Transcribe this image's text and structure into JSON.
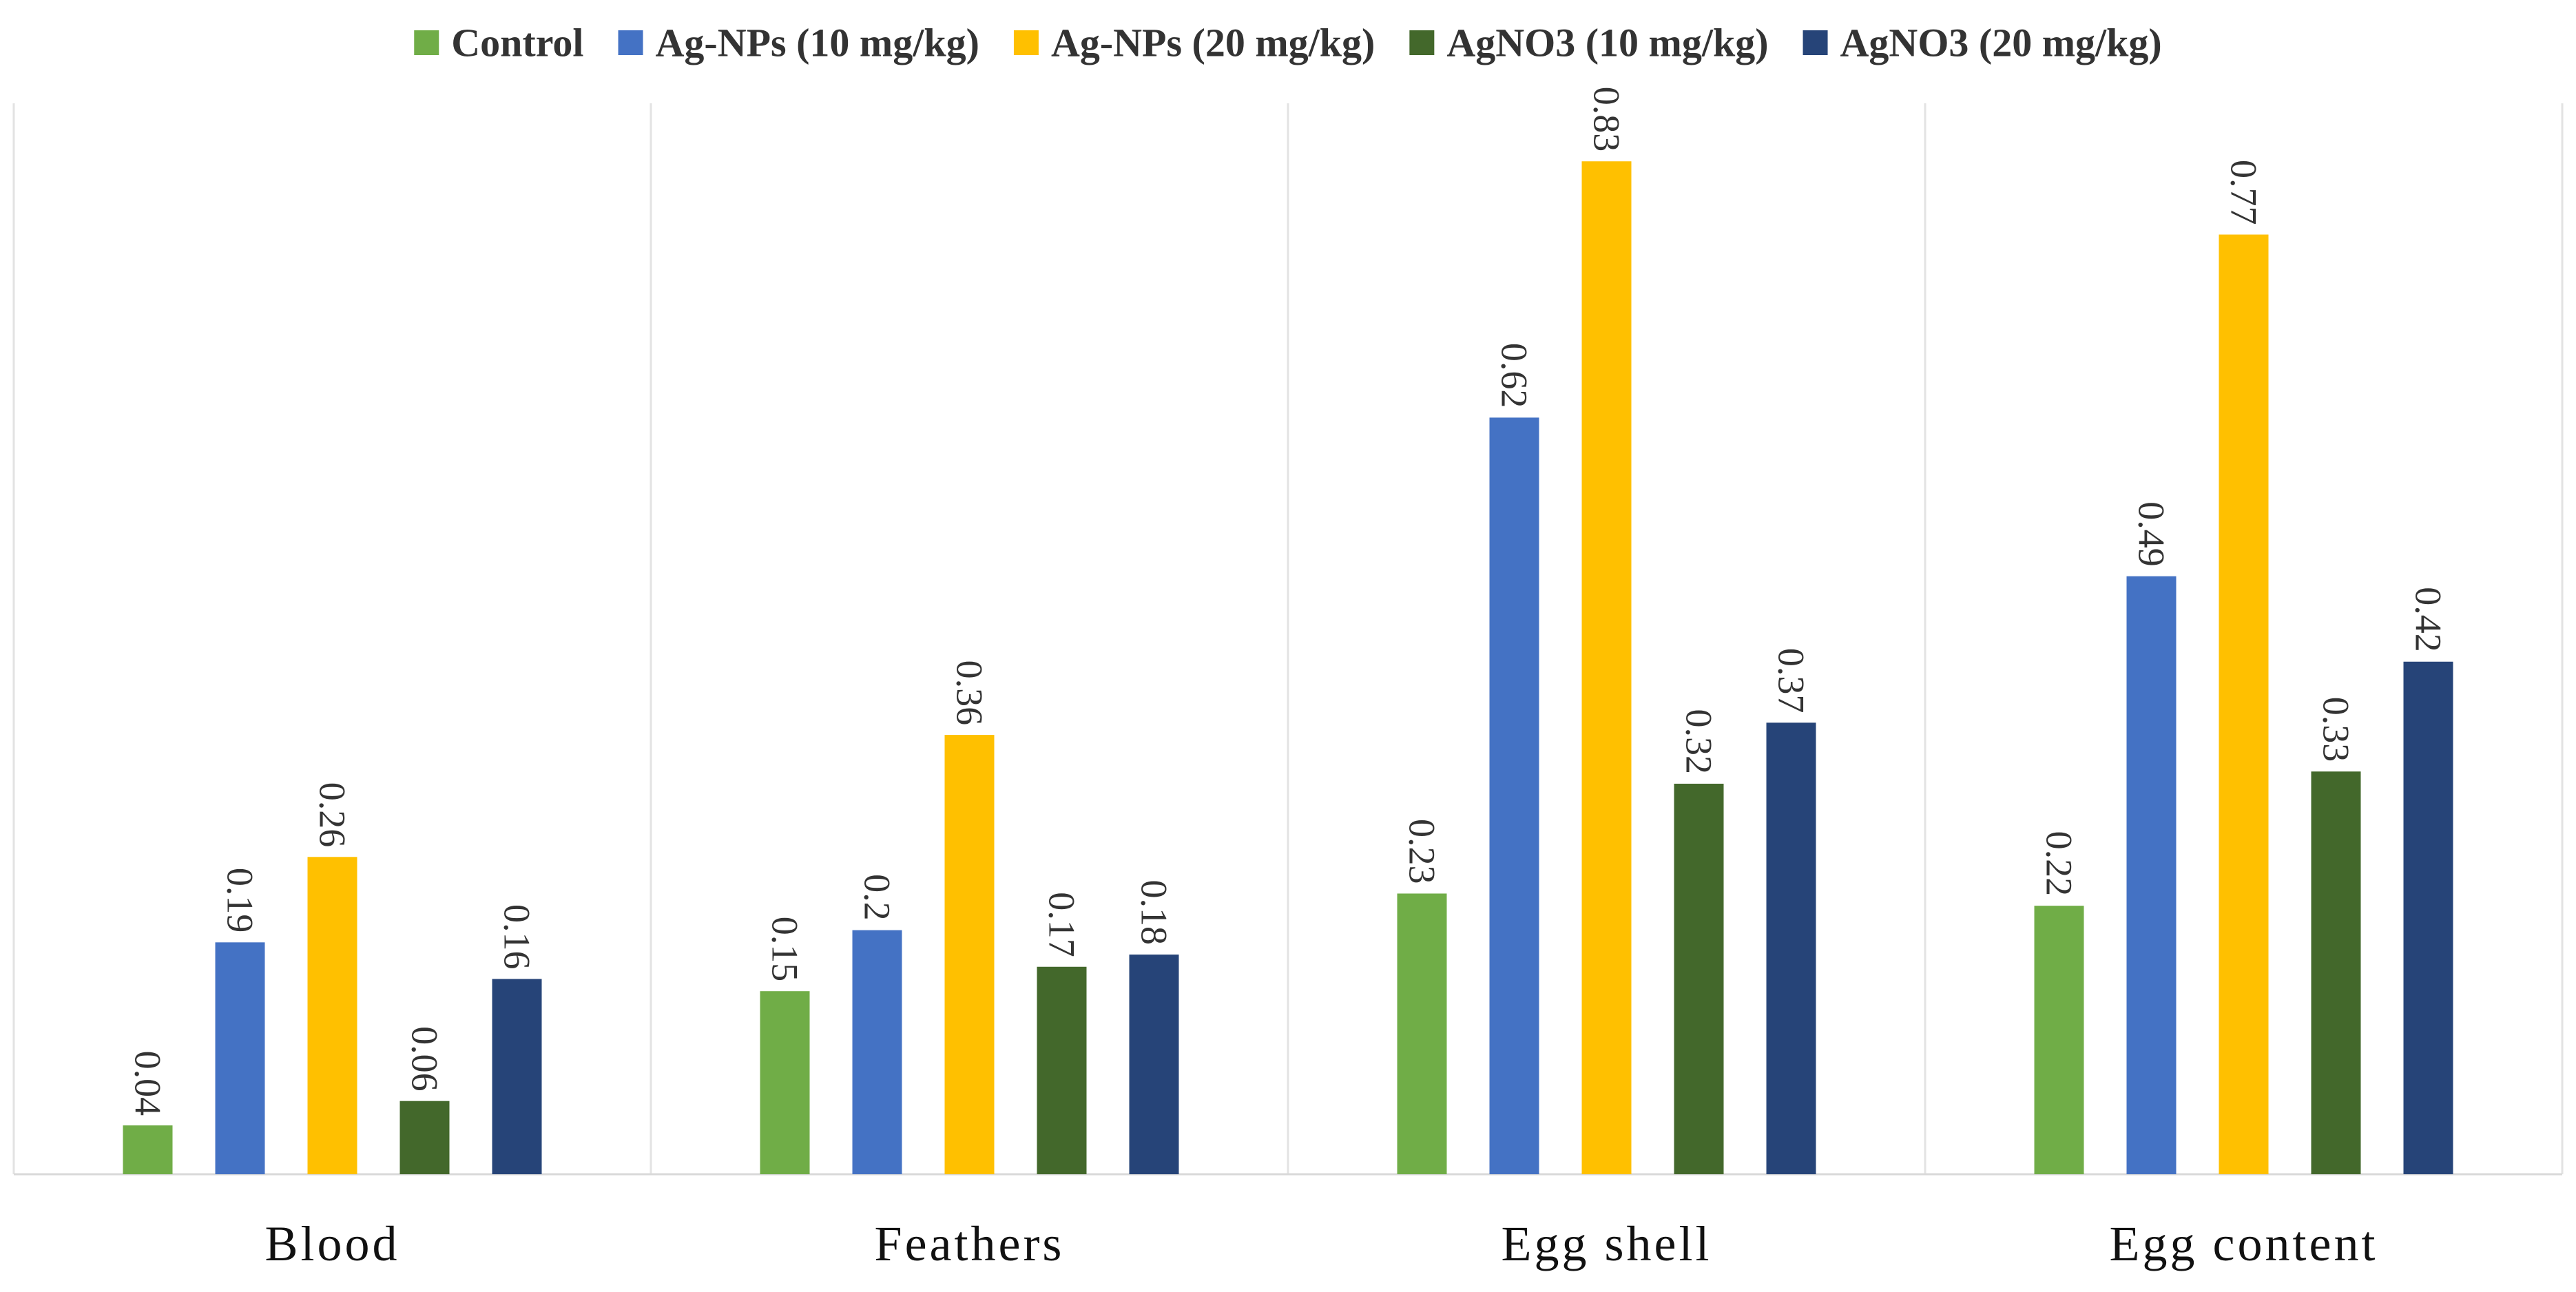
{
  "chart_data": {
    "type": "bar",
    "title": "",
    "xlabel": "",
    "ylabel": "",
    "ylim": [
      0,
      0.9
    ],
    "grid": false,
    "legend_position": "top",
    "categories": [
      "Blood",
      "Feathers",
      "Egg shell",
      "Egg content"
    ],
    "series": [
      {
        "name": "Control",
        "color": "#70ad47",
        "values": [
          0.04,
          0.15,
          0.23,
          0.22
        ],
        "labels": [
          "0.04",
          "0.15",
          "0.23",
          "0.22"
        ]
      },
      {
        "name": "Ag-NPs (10 mg/kg)",
        "color": "#4472c4",
        "values": [
          0.19,
          0.2,
          0.62,
          0.49
        ],
        "labels": [
          "0.19",
          "0.2",
          "0.62",
          "0.49"
        ]
      },
      {
        "name": "Ag-NPs (20 mg/kg)",
        "color": "#ffc000",
        "values": [
          0.26,
          0.36,
          0.83,
          0.77
        ],
        "labels": [
          "0.26",
          "0.36",
          "0.83",
          "0.77"
        ]
      },
      {
        "name": "AgNO3 (10 mg/kg)",
        "color": "#43682b",
        "values": [
          0.06,
          0.17,
          0.32,
          0.33
        ],
        "labels": [
          "0.06",
          "0.17",
          "0.32",
          "0.33"
        ]
      },
      {
        "name": "AgNO3 (20 mg/kg)",
        "color": "#264478",
        "values": [
          0.16,
          0.18,
          0.37,
          0.42
        ],
        "labels": [
          "0.16",
          "0.18",
          "0.37",
          "0.42"
        ]
      }
    ]
  }
}
